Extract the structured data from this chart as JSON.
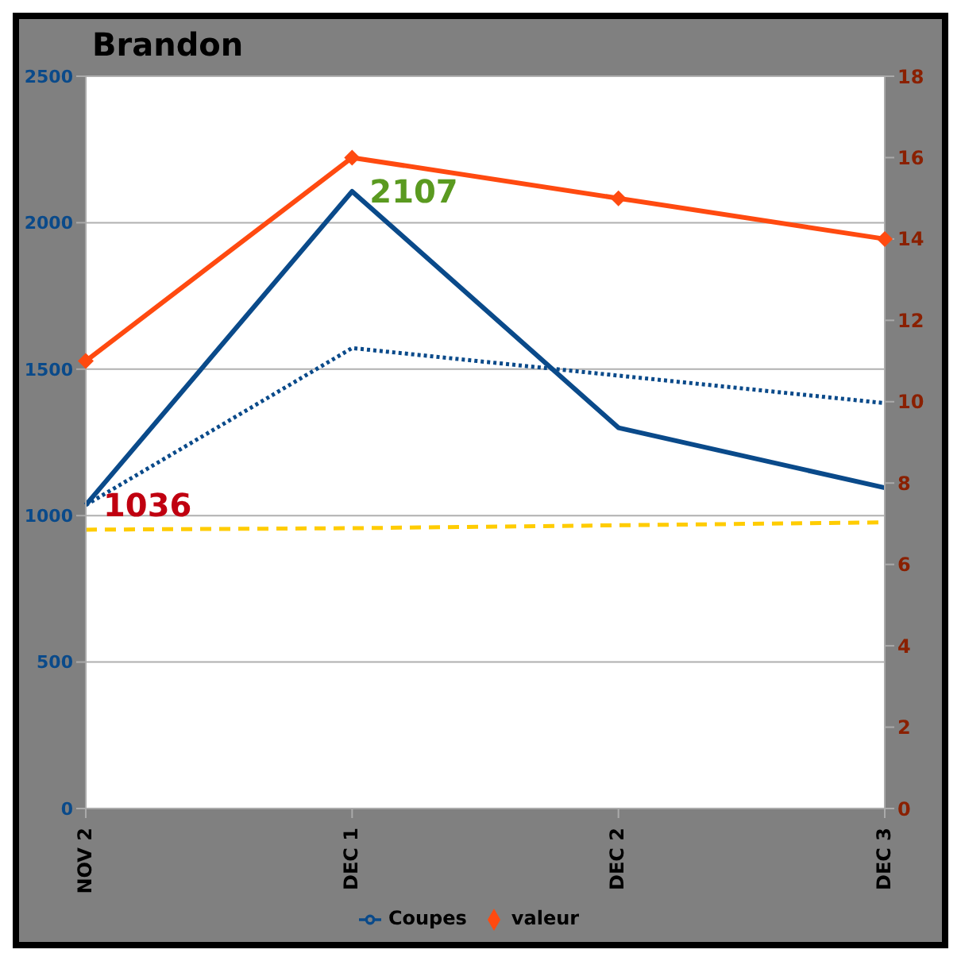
{
  "chart_data": {
    "type": "line",
    "title": "Brandon",
    "categories": [
      "NOV 2",
      "DEC 1",
      "DEC 2",
      "DEC 3"
    ],
    "series": [
      {
        "name": "Coupes",
        "color": "#0a4a8a",
        "values": [
          1036,
          2107,
          1300,
          1095
        ],
        "marker": "none",
        "line_style": "solid"
      },
      {
        "name": "valeur",
        "color": "#ff4a10",
        "values": [
          11,
          16,
          15,
          14
        ],
        "axis": "y2",
        "marker": "diamond",
        "line_style": "solid"
      },
      {
        "color": "#0a4a8a",
        "values": [
          1036,
          1572,
          1478,
          1384
        ],
        "marker": "none",
        "line_style": "dotted"
      },
      {
        "color": "#ffcc00",
        "values": [
          952,
          957,
          967,
          977
        ],
        "marker": "none",
        "line_style": "dashed"
      }
    ],
    "ylim": [
      0,
      2500
    ],
    "yticks": [
      0,
      500,
      1000,
      1500,
      2000,
      2500
    ],
    "y2lim": [
      0,
      18
    ],
    "y2ticks": [
      0,
      2,
      4,
      6,
      8,
      10,
      12,
      14,
      16,
      18
    ],
    "annotations": [
      {
        "text": "1036",
        "x": "NOV 2",
        "y": 1036
      },
      {
        "text": "2107",
        "x": "DEC 1",
        "y": 2107
      }
    ],
    "grid": "y",
    "legend": "bottom"
  }
}
